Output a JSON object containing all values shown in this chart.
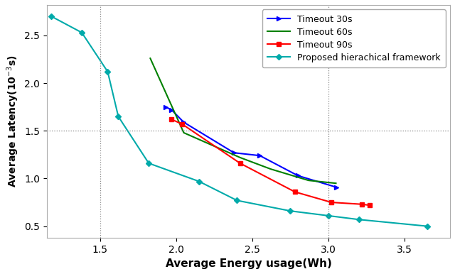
{
  "timeout30_x": [
    1.93,
    1.97,
    2.05,
    2.38,
    2.55,
    2.8,
    3.05
  ],
  "timeout30_y": [
    1.75,
    1.72,
    1.59,
    1.27,
    1.24,
    1.03,
    0.91
  ],
  "timeout60_x": [
    1.83,
    2.05,
    2.42,
    2.62,
    2.87,
    3.05
  ],
  "timeout60_y": [
    2.26,
    1.48,
    1.22,
    1.1,
    0.98,
    0.95
  ],
  "timeout90_x": [
    1.97,
    2.04,
    2.42,
    2.78,
    3.02,
    3.22,
    3.27
  ],
  "timeout90_y": [
    1.62,
    1.57,
    1.16,
    0.86,
    0.75,
    0.73,
    0.72
  ],
  "proposed_x": [
    1.18,
    1.38,
    1.55,
    1.62,
    1.82,
    2.15,
    2.4,
    2.75,
    3.0,
    3.2,
    3.65
  ],
  "proposed_y": [
    2.7,
    2.53,
    2.12,
    1.65,
    1.16,
    0.97,
    0.77,
    0.66,
    0.61,
    0.57,
    0.5
  ],
  "color_30": "#0000ff",
  "color_60": "#008000",
  "color_90": "#ff0000",
  "color_proposed": "#00aaaa",
  "xlabel": "Average Energy usage(Wh)",
  "ylabel": "Average Latency(10$^{-3}$s)",
  "xlim": [
    1.15,
    3.8
  ],
  "ylim": [
    0.38,
    2.82
  ],
  "xticks": [
    1.5,
    2.0,
    2.5,
    3.0,
    3.5
  ],
  "yticks": [
    0.5,
    1.0,
    1.5,
    2.0,
    2.5
  ],
  "grid_xticks": [
    1.5,
    3.0
  ],
  "grid_ytick": 1.5,
  "label_30": "Timeout 30s",
  "label_60": "Timeout 60s",
  "label_90": "Timeout 90s",
  "label_proposed": "Proposed hierachical framework"
}
